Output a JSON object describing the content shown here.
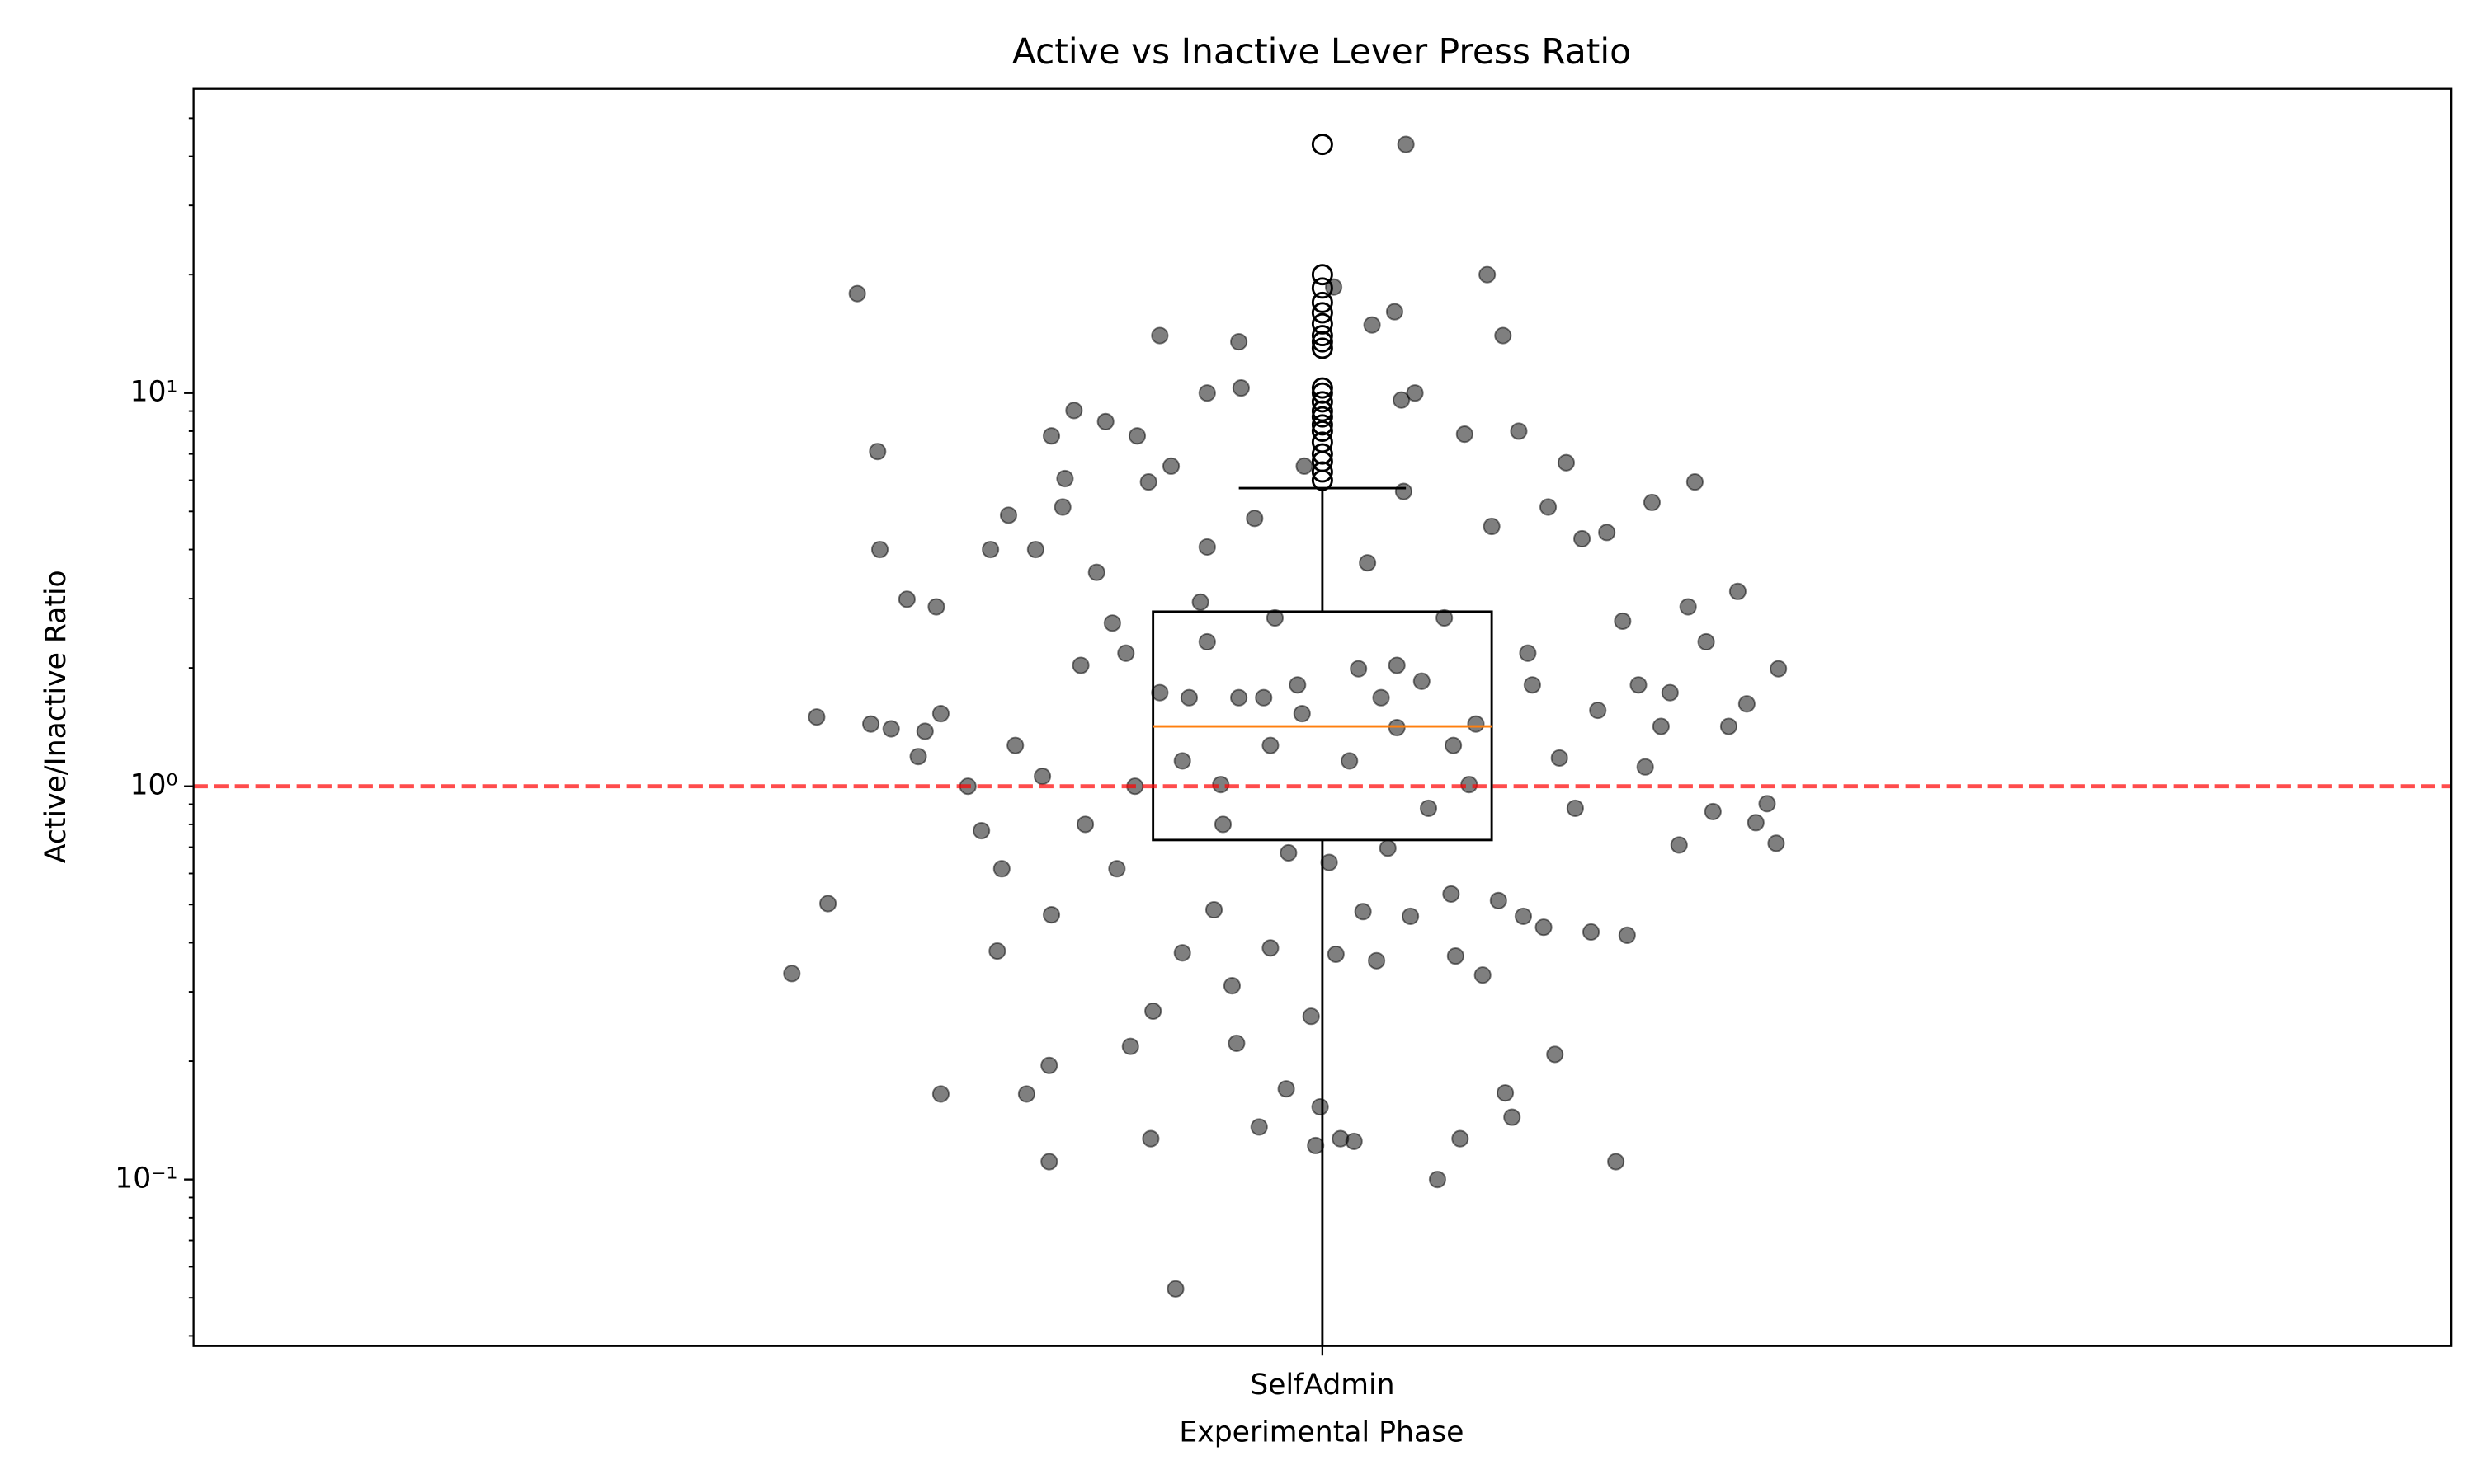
{
  "chart_data": {
    "type": "box",
    "title": "Active vs Inactive Lever Press Ratio",
    "xlabel": "Experimental Phase",
    "ylabel": "Active/Inactive Ratio",
    "categories": [
      "SelfAdmin"
    ],
    "xlim": [
      0.5,
      1.5
    ],
    "ylim": [
      0.0377,
      59.4
    ],
    "yscale": "log",
    "yticks": [
      {
        "value": 0.1,
        "label": "10⁻¹"
      },
      {
        "value": 1,
        "label": "10⁰"
      },
      {
        "value": 10,
        "label": "10¹"
      }
    ],
    "yminor_ticks": [
      0.04,
      0.05,
      0.06,
      0.07,
      0.08,
      0.09,
      0.2,
      0.3,
      0.4,
      0.5,
      0.6,
      0.7,
      0.8,
      0.9,
      2,
      3,
      4,
      5,
      6,
      7,
      8,
      9,
      20,
      30,
      40,
      50
    ],
    "boxes": [
      {
        "whislo": 0.03,
        "q1": 0.73,
        "med": 1.42,
        "q3": 2.78,
        "whishi": 5.73,
        "fliers": [
          42.9,
          20,
          18.5,
          17,
          16,
          15,
          14,
          13.5,
          13,
          10.3,
          10,
          9.5,
          9,
          8.7,
          8.3,
          8,
          7.5,
          7,
          6.7,
          6.3,
          6
        ]
      }
    ],
    "box_color": "#000000",
    "median_color": "#ff7f0e",
    "reference_line": {
      "value": 1,
      "color": "#ff0000",
      "style": "dashed"
    },
    "scatter": {
      "color": "#000000",
      "opacity": 0.5,
      "x": [
        0.794,
        1.037,
        1.073,
        1.08,
        0.928,
        0.963,
        1.032,
        1.022,
        1.005,
        0.949,
        0.964,
        1.035,
        1.041,
        0.803,
        0.804,
        0.776,
        0.765,
        0.781,
        0.8,
        0.809,
        0.816,
        0.821,
        0.824,
        0.829,
        0.831,
        0.831,
        0.843,
        0.849,
        0.853,
        0.856,
        0.858,
        0.861,
        0.864,
        0.869,
        0.873,
        0.876,
        0.879,
        0.879,
        0.88,
        0.88,
        0.885,
        0.886,
        0.89,
        0.893,
        0.895,
        0.9,
        0.904,
        0.907,
        0.909,
        0.913,
        0.915,
        0.917,
        0.918,
        0.923,
        0.924,
        0.925,
        0.928,
        0.933,
        0.935,
        0.938,
        0.941,
        0.946,
        0.949,
        0.952,
        0.955,
        0.96,
        0.962,
        0.963,
        0.97,
        0.972,
        0.974,
        0.977,
        0.979,
        0.984,
        0.985,
        0.989,
        0.992,
        0.995,
        0.997,
        0.999,
        1.003,
        1.006,
        1.008,
        1.014,
        1.016,
        1.018,
        1.02,
        1.024,
        1.029,
        1.033,
        1.036,
        1.039,
        1.044,
        1.051,
        1.054,
        1.057,
        1.059,
        1.061,
        1.063,
        1.065,
        1.068,
        1.071,
        1.075,
        1.078,
        1.081,
        1.084,
        1.087,
        1.089,
        1.091,
        1.093,
        1.098,
        1.1,
        1.103,
        1.105,
        1.108,
        1.112,
        1.115,
        1.119,
        1.122,
        1.126,
        1.13,
        1.133,
        1.135,
        1.14,
        1.143,
        1.146,
        1.15,
        1.154,
        1.158,
        1.162,
        1.165,
        1.17,
        1.173,
        1.18,
        1.184,
        1.188,
        1.192,
        1.197,
        1.201,
        1.202,
        0.949,
        0.977,
        1.012,
        1.033,
        1.047,
        0.956,
        0.991,
        1.026,
        0.938,
        1.058
      ],
      "values": [
        17.9,
        42.9,
        20.0,
        14.0,
        14.0,
        13.5,
        16.1,
        14.9,
        18.6,
        10,
        10.3,
        9.6,
        10,
        7.1,
        4.0,
        1.5,
        0.334,
        0.503,
        1.44,
        1.4,
        2.99,
        1.19,
        1.38,
        2.86,
        1.53,
        0.165,
        1.0,
        0.771,
        4.0,
        0.381,
        0.617,
        4.89,
        1.27,
        0.165,
        4.0,
        1.06,
        0.195,
        0.111,
        0.471,
        7.78,
        5.13,
        6.06,
        9.03,
        2.03,
        0.8,
        3.5,
        8.46,
        2.6,
        0.617,
        2.18,
        0.218,
        1.0,
        7.78,
        5.94,
        0.127,
        0.268,
        1.73,
        6.52,
        0.0527,
        0.377,
        1.68,
        2.94,
        4.06,
        0.485,
        1.01,
        0.311,
        0.222,
        1.68,
        4.8,
        0.136,
        1.68,
        0.388,
        2.68,
        0.17,
        0.677,
        1.81,
        6.52,
        0.26,
        0.122,
        0.153,
        0.64,
        0.374,
        0.127,
        0.125,
        1.99,
        0.48,
        3.7,
        0.36,
        0.696,
        1.41,
        5.62,
        0.467,
        1.85,
        0.1,
        2.68,
        0.532,
        0.37,
        0.127,
        7.86,
        1.01,
        1.44,
        0.331,
        4.58,
        0.512,
        0.166,
        0.144,
        8.0,
        0.467,
        2.18,
        1.81,
        0.438,
        5.13,
        0.208,
        1.18,
        6.65,
        0.879,
        4.26,
        0.426,
        1.56,
        4.42,
        0.111,
        2.63,
        0.418,
        1.81,
        1.12,
        5.27,
        1.42,
        1.73,
        0.709,
        2.86,
        5.94,
        2.33,
        0.862,
        1.42,
        3.13,
        1.62,
        0.808,
        0.903,
        0.716,
        1.99,
        2.33,
        1.27,
        1.16,
        2.03,
        0.879,
        0.8,
        1.53,
        1.68,
        1.16,
        1.27
      ]
    }
  }
}
